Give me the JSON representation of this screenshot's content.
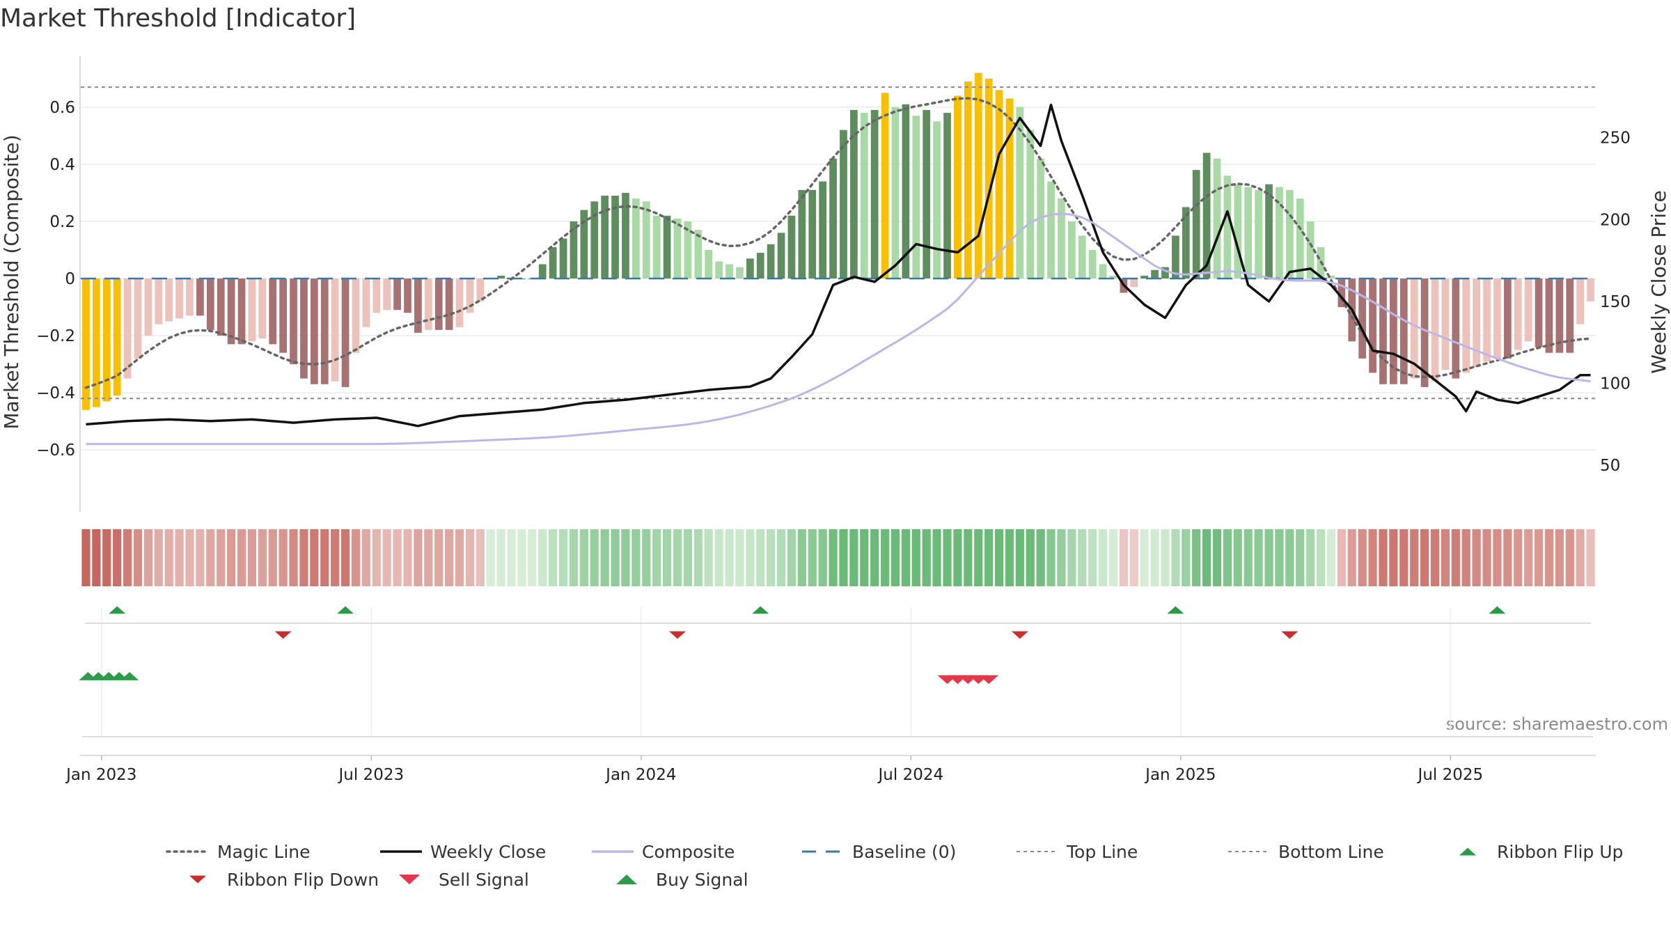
{
  "chart_data": {
    "type": "bar",
    "title": "Market Threshold [Indicator]",
    "ylabel": "Market Threshold (Composite)",
    "y2label": "Weekly Close Price",
    "source": "source: sharemaestro.com",
    "ylim": [
      -0.78,
      0.78
    ],
    "y2lim": [
      28,
      300
    ],
    "yticks": [
      {
        "v": 0.6,
        "label": "0.6"
      },
      {
        "v": 0.4,
        "label": "0.4"
      },
      {
        "v": 0.2,
        "label": "0.2"
      },
      {
        "v": 0,
        "label": "0"
      },
      {
        "v": -0.2,
        "label": "−0.2"
      },
      {
        "v": -0.4,
        "label": "−0.4"
      },
      {
        "v": -0.6,
        "label": "−0.6"
      }
    ],
    "y2ticks": [
      {
        "v": 250,
        "label": "250"
      },
      {
        "v": 200,
        "label": "200"
      },
      {
        "v": 150,
        "label": "150"
      },
      {
        "v": 100,
        "label": "100"
      },
      {
        "v": 50,
        "label": "50"
      }
    ],
    "xticks": [
      {
        "w": 1.5,
        "label": "Jan 2023"
      },
      {
        "w": 27.5,
        "label": "Jul 2023"
      },
      {
        "w": 53.5,
        "label": "Jan 2024"
      },
      {
        "w": 79.5,
        "label": "Jul 2024"
      },
      {
        "w": 105.5,
        "label": "Jan 2025"
      },
      {
        "w": 131.5,
        "label": "Jul 2025"
      }
    ],
    "top_line": 0.67,
    "bottom_line": -0.42,
    "baseline": 0,
    "composite_bars": [
      -0.46,
      -0.45,
      -0.43,
      -0.41,
      -0.35,
      -0.28,
      -0.2,
      -0.16,
      -0.15,
      -0.14,
      -0.13,
      -0.13,
      -0.18,
      -0.2,
      -0.23,
      -0.23,
      -0.22,
      -0.21,
      -0.23,
      -0.26,
      -0.3,
      -0.35,
      -0.37,
      -0.37,
      -0.36,
      -0.38,
      -0.26,
      -0.17,
      -0.12,
      -0.11,
      -0.11,
      -0.12,
      -0.19,
      -0.18,
      -0.18,
      -0.18,
      -0.17,
      -0.12,
      -0.08,
      0,
      0.01,
      0,
      0,
      0,
      0.05,
      0.11,
      0.14,
      0.2,
      0.24,
      0.27,
      0.29,
      0.29,
      0.3,
      0.28,
      0.27,
      0.22,
      0.22,
      0.21,
      0.2,
      0.17,
      0.1,
      0.06,
      0.05,
      0.04,
      0.07,
      0.09,
      0.12,
      0.16,
      0.22,
      0.31,
      0.31,
      0.34,
      0.42,
      0.52,
      0.59,
      0.58,
      0.59,
      0.65,
      0.6,
      0.61,
      0.57,
      0.59,
      0.55,
      0.58,
      0.64,
      0.69,
      0.72,
      0.7,
      0.66,
      0.63,
      0.6,
      0.52,
      0.42,
      0.34,
      0.28,
      0.2,
      0.15,
      0.1,
      0.05,
      0.01,
      -0.05,
      -0.03,
      0.01,
      0.03,
      0.04,
      0.15,
      0.25,
      0.38,
      0.44,
      0.42,
      0.36,
      0.33,
      0.32,
      0.31,
      0.33,
      0.32,
      0.31,
      0.28,
      0.2,
      0.11,
      0.01,
      -0.1,
      -0.22,
      -0.28,
      -0.33,
      -0.37,
      -0.37,
      -0.37,
      -0.35,
      -0.38,
      -0.36,
      -0.32,
      -0.35,
      -0.33,
      -0.31,
      -0.29,
      -0.28,
      -0.28,
      -0.25,
      -0.22,
      -0.24,
      -0.26,
      -0.26,
      -0.26,
      -0.16,
      -0.08
    ],
    "colors": {
      "extreme": "#f8c000",
      "strong_pos": "#5e8e5e",
      "weak_pos": "#a9d9a4",
      "strong_neg": "#a87272",
      "weak_neg": "#ecc2bb",
      "magic_line": "#666666",
      "weekly_close": "#111111",
      "composite": "#bdb6e8",
      "baseline": "#3a78a8",
      "threshold": "#888888",
      "flip_up": "#2a9a46",
      "flip_down": "#d02b2b",
      "buy": "#2c9c48",
      "sell": "#e2384a"
    },
    "ribbon_flip_up_weeks": [
      3,
      25,
      65,
      105,
      136
    ],
    "ribbon_flip_down_weeks": [
      19,
      57,
      90,
      116
    ],
    "buy_signal_weeks": [
      0.2,
      1.2,
      2.2,
      3.2,
      4.2
    ],
    "sell_signal_weeks": [
      83,
      84,
      85,
      86,
      87
    ],
    "legend": [
      {
        "key": "magic",
        "label": "Magic Line"
      },
      {
        "key": "close",
        "label": "Weekly Close"
      },
      {
        "key": "composite",
        "label": "Composite"
      },
      {
        "key": "baseline",
        "label": "Baseline (0)"
      },
      {
        "key": "top",
        "label": "Top Line"
      },
      {
        "key": "bottom",
        "label": "Bottom Line"
      },
      {
        "key": "flipup",
        "label": "Ribbon Flip Up"
      },
      {
        "key": "flipdown",
        "label": "Ribbon Flip Down"
      },
      {
        "key": "sell",
        "label": "Sell Signal"
      },
      {
        "key": "buy",
        "label": "Buy Signal"
      }
    ]
  }
}
